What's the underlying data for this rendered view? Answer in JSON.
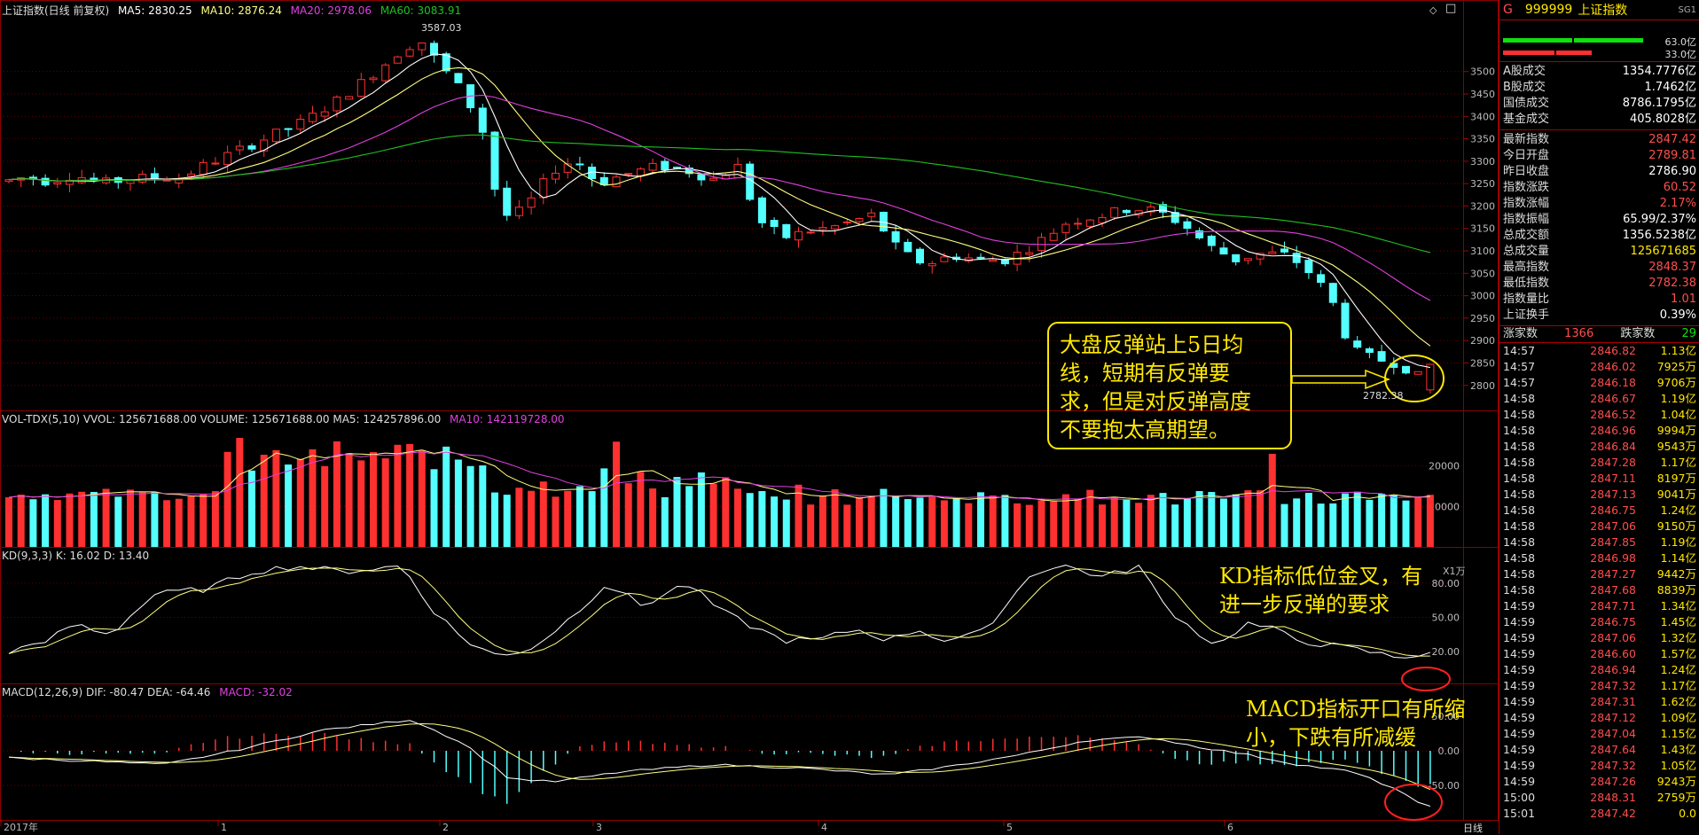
{
  "header": {
    "title": "上证指数(日线 前复权)",
    "ma5": "MA5: 2830.25",
    "ma10": "MA10: 2876.24",
    "ma20": "MA20: 2978.06",
    "ma60": "MA60: 3083.91",
    "high_label": "3587.03",
    "low_label": "2782.38"
  },
  "colors": {
    "up": "#ff3030",
    "down": "#54ffff",
    "ma5": "#ffffff",
    "ma10": "#ffff80",
    "ma20": "#e040e0",
    "ma60": "#20c020",
    "grid": "#8b0000",
    "note": "#ffe800"
  },
  "price_axis": [
    "3500",
    "3450",
    "3400",
    "3350",
    "3300",
    "3250",
    "3200",
    "3150",
    "3100",
    "3050",
    "3000",
    "2950",
    "2900",
    "2850",
    "2800"
  ],
  "volume": {
    "header": "VOL-TDX(5,10)  VVOL: 125671688.00  VOLUME: 125671688.00  MA5: 124257896.00",
    "ma10": "MA10: 142119728.00",
    "axis": [
      "20000",
      "10000"
    ],
    "unit": "X1万"
  },
  "kd": {
    "header": "KD(9,3,3)  K: 16.02  D: 13.40",
    "axis": [
      "80.00",
      "50.00",
      "20.00"
    ]
  },
  "macd": {
    "header": "MACD(12,26,9)  DIF: -80.47  DEA: -64.46",
    "macd_val": "MACD: -32.02",
    "axis": [
      "50.00",
      "0.00",
      "-50.00"
    ]
  },
  "x_axis": [
    {
      "label": "2017年",
      "x": 0
    },
    {
      "label": "1",
      "x": 245
    },
    {
      "label": "2",
      "x": 495
    },
    {
      "label": "3",
      "x": 668
    },
    {
      "label": "4",
      "x": 922
    },
    {
      "label": "5",
      "x": 1131
    },
    {
      "label": "6",
      "x": 1380
    }
  ],
  "period_label": "日线",
  "annotations": {
    "main": [
      "大盘反弹站上5日均",
      "线，短期有反弹要",
      "求，但是对反弹高度",
      "不要抱太高期望。"
    ],
    "kd": [
      "KD指标低位金叉，有",
      "进一步反弹的要求"
    ],
    "macd": [
      "MACD指标开口有所缩",
      "小，下跌有所减缓"
    ]
  },
  "panel": {
    "code": "999999",
    "name": "上证指数",
    "badge": "SG1",
    "g": "G",
    "bar1": "63.0亿",
    "bar2": "33.0亿",
    "rows1": [
      {
        "label": "A股成交",
        "value": "1354.7776亿"
      },
      {
        "label": "B股成交",
        "value": "1.7462亿"
      },
      {
        "label": "国债成交",
        "value": "8786.1795亿"
      },
      {
        "label": "基金成交",
        "value": "405.8028亿"
      }
    ],
    "rows2": [
      {
        "label": "最新指数",
        "value": "2847.42",
        "color": "#ff4d4d"
      },
      {
        "label": "今日开盘",
        "value": "2789.81",
        "color": "#ff4d4d"
      },
      {
        "label": "昨日收盘",
        "value": "2786.90",
        "color": "#ffffff"
      },
      {
        "label": "指数涨跌",
        "value": "60.52",
        "color": "#ff4d4d"
      },
      {
        "label": "指数涨幅",
        "value": "2.17%",
        "color": "#ff4d4d"
      },
      {
        "label": "指数振幅",
        "value": "65.99/2.37%",
        "color": "#ffffff"
      },
      {
        "label": "总成交额",
        "value": "1356.5238亿",
        "color": "#ffffff"
      },
      {
        "label": "总成交量",
        "value": "125671685",
        "color": "#ffe800"
      },
      {
        "label": "最高指数",
        "value": "2848.37",
        "color": "#ff4d4d"
      },
      {
        "label": "最低指数",
        "value": "2782.38",
        "color": "#ff4d4d"
      },
      {
        "label": "指数量比",
        "value": "1.01",
        "color": "#ff4d4d"
      },
      {
        "label": "上证换手",
        "value": "0.39%",
        "color": "#ffffff"
      }
    ],
    "up_label": "涨家数",
    "up_count": "1366",
    "down_label": "跌家数",
    "down_count": "29",
    "ticks": [
      [
        "14:57",
        "2846.82",
        "1.13亿"
      ],
      [
        "14:57",
        "2846.02",
        "7925万"
      ],
      [
        "14:57",
        "2846.18",
        "9706万"
      ],
      [
        "14:58",
        "2846.67",
        "1.19亿"
      ],
      [
        "14:58",
        "2846.52",
        "1.04亿"
      ],
      [
        "14:58",
        "2846.96",
        "9994万"
      ],
      [
        "14:58",
        "2846.84",
        "9543万"
      ],
      [
        "14:58",
        "2847.28",
        "1.17亿"
      ],
      [
        "14:58",
        "2847.11",
        "8197万"
      ],
      [
        "14:58",
        "2847.13",
        "9041万"
      ],
      [
        "14:58",
        "2846.75",
        "1.24亿"
      ],
      [
        "14:58",
        "2847.06",
        "9150万"
      ],
      [
        "14:58",
        "2847.85",
        "1.19亿"
      ],
      [
        "14:58",
        "2846.98",
        "1.14亿"
      ],
      [
        "14:58",
        "2847.27",
        "9442万"
      ],
      [
        "14:58",
        "2847.68",
        "8839万"
      ],
      [
        "14:59",
        "2847.71",
        "1.34亿"
      ],
      [
        "14:59",
        "2846.75",
        "1.45亿"
      ],
      [
        "14:59",
        "2847.06",
        "1.32亿"
      ],
      [
        "14:59",
        "2846.60",
        "1.57亿"
      ],
      [
        "14:59",
        "2846.94",
        "1.24亿"
      ],
      [
        "14:59",
        "2847.32",
        "1.17亿"
      ],
      [
        "14:59",
        "2847.31",
        "1.62亿"
      ],
      [
        "14:59",
        "2847.12",
        "1.09亿"
      ],
      [
        "14:59",
        "2847.04",
        "1.15亿"
      ],
      [
        "14:59",
        "2847.64",
        "1.43亿"
      ],
      [
        "14:59",
        "2847.32",
        "1.05亿"
      ],
      [
        "14:59",
        "2847.26",
        "9243万"
      ],
      [
        "15:00",
        "2848.31",
        "2759万"
      ],
      [
        "15:01",
        "2847.42",
        "0.0"
      ]
    ]
  }
}
